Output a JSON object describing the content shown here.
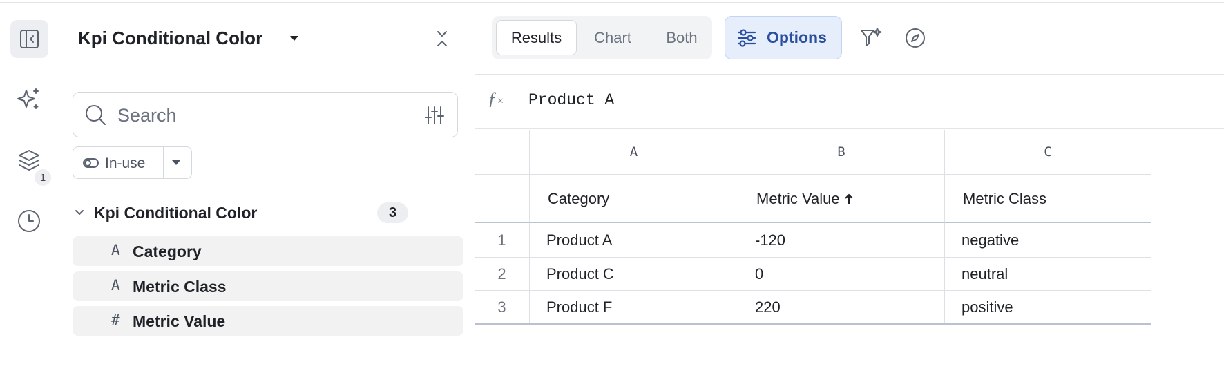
{
  "sidebar": {
    "layers_badge": 1
  },
  "panel": {
    "title": "Kpi Conditional Color",
    "search_placeholder": "Search",
    "filter": "In-use",
    "group": {
      "name": "Kpi Conditional Color",
      "count": 3,
      "fields": [
        {
          "icon": "A",
          "name": "Category"
        },
        {
          "icon": "A",
          "name": "Metric Class"
        },
        {
          "icon": "#",
          "name": "Metric Value"
        }
      ]
    }
  },
  "toolbar": {
    "tabs": [
      "Results",
      "Chart",
      "Both"
    ],
    "options": "Options"
  },
  "formula_bar": {
    "value": "Product A"
  },
  "table": {
    "column_letters": [
      "A",
      "B",
      "C"
    ],
    "headers": [
      "Category",
      "Metric Value",
      "Metric Class"
    ],
    "rows": [
      {
        "index": 1,
        "cells": [
          "Product A",
          -120,
          "negative"
        ]
      },
      {
        "index": 2,
        "cells": [
          "Product C",
          0,
          "neutral"
        ]
      },
      {
        "index": 3,
        "cells": [
          "Product F",
          220,
          "positive"
        ]
      }
    ]
  }
}
